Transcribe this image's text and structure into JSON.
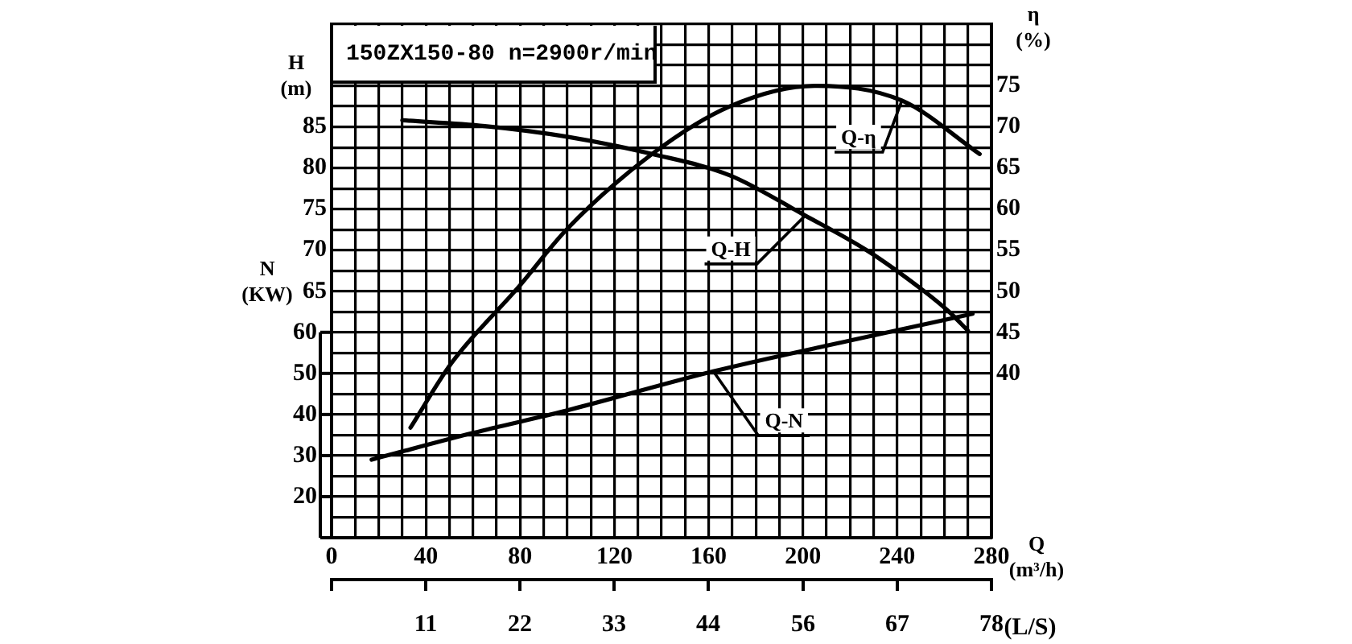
{
  "chart_data": {
    "type": "line",
    "title": "150ZX150-80 n=2900r/min",
    "xlabel": "Q\n(m³/h)",
    "ylabel": "H\n(m)",
    "y2label": "η\n(%)",
    "y3label": "N\n(KW)",
    "x2label": "(L/S)",
    "xlim": [
      0,
      280
    ],
    "xticks": [
      0,
      {
        "value": 10,
        "label": null
      },
      {
        "value": 20,
        "label": null
      },
      {
        "value": 30,
        "label": null
      },
      40,
      {
        "value": 50,
        "label": null
      },
      {
        "value": 60,
        "label": null
      },
      {
        "value": 70,
        "label": null
      },
      80,
      {
        "value": 90,
        "label": null
      },
      {
        "value": 100,
        "label": null
      },
      {
        "value": 110,
        "label": null
      },
      120,
      {
        "value": 130,
        "label": null
      },
      {
        "value": 140,
        "label": null
      },
      {
        "value": 150,
        "label": null
      },
      160,
      {
        "value": 170,
        "label": null
      },
      {
        "value": 180,
        "label": null
      },
      {
        "value": 190,
        "label": null
      },
      200,
      {
        "value": 210,
        "label": null
      },
      {
        "value": 220,
        "label": null
      },
      {
        "value": 230,
        "label": null
      },
      240,
      {
        "value": 250,
        "label": null
      },
      {
        "value": 260,
        "label": null
      },
      {
        "value": 270,
        "label": null
      },
      280
    ],
    "ylim": [
      35,
      97.5
    ],
    "yticks": [
      {
        "value": 35,
        "label": null
      },
      {
        "value": 37.5,
        "label": null
      },
      {
        "value": 40,
        "label": null
      },
      {
        "value": 42.5,
        "label": null
      },
      {
        "value": 45,
        "label": null
      },
      {
        "value": 47.5,
        "label": null
      },
      {
        "value": 50,
        "label": null
      },
      {
        "value": 52.5,
        "label": null
      },
      {
        "value": 55,
        "label": null
      },
      {
        "value": 57.5,
        "label": null
      },
      {
        "value": 60,
        "label": null
      },
      {
        "value": 62.5,
        "label": null
      },
      65,
      {
        "value": 67.5,
        "label": null
      },
      70,
      {
        "value": 72.5,
        "label": null
      },
      75,
      {
        "value": 77.5,
        "label": null
      },
      80,
      {
        "value": 82.5,
        "label": null
      },
      85,
      {
        "value": 87.5,
        "label": null
      },
      {
        "value": 90,
        "label": null
      },
      {
        "value": 92.5,
        "label": null
      },
      {
        "value": 95,
        "label": null
      },
      {
        "value": 97.5,
        "label": null
      }
    ],
    "y2lim": [
      20,
      82.5
    ],
    "y2ticks": [
      40,
      45,
      50,
      55,
      60,
      65,
      70,
      75
    ],
    "y3lim": [
      10,
      135
    ],
    "y3ticks": [
      {
        "value": 10,
        "label": null
      },
      20,
      30,
      40,
      50,
      60
    ],
    "x2lim": [
      0,
      77.8
    ],
    "x2ticks": [
      {
        "value": 0,
        "label": null
      },
      {
        "value": 11.1,
        "label": "11"
      },
      {
        "value": 22.2,
        "label": "22"
      },
      {
        "value": 33.3,
        "label": "33"
      },
      {
        "value": 44.4,
        "label": "44"
      },
      {
        "value": 55.6,
        "label": "56"
      },
      {
        "value": 66.7,
        "label": "67"
      },
      {
        "value": 77.8,
        "label": "78"
      }
    ],
    "grid": true,
    "legend": false,
    "marker": "none",
    "line_style": "solid",
    "series": [
      {
        "name": "Q-H",
        "color": "#000000",
        "axis": "y",
        "x": [
          30,
          65,
          100,
          136,
          169,
          201,
          227,
          251,
          262,
          270
        ],
        "values": [
          85.8,
          85.1,
          83.8,
          81.7,
          79.1,
          74.2,
          70,
          65.1,
          62.5,
          60.2
        ]
      },
      {
        "name": "Q-η",
        "color": "#000000",
        "axis": "y2",
        "x": [
          33.5,
          51,
          79,
          100,
          136,
          169,
          205,
          242,
          275
        ],
        "values": [
          33.4,
          41.3,
          50.4,
          57.6,
          66.7,
          72.5,
          75,
          73.2,
          66.7
        ]
      },
      {
        "name": "Q-N",
        "color": "#000000",
        "axis": "y3",
        "x": [
          17,
          60,
          100,
          162,
          220,
          272
        ],
        "values": [
          29,
          35.5,
          41,
          50.5,
          58,
          64.5
        ]
      }
    ]
  }
}
